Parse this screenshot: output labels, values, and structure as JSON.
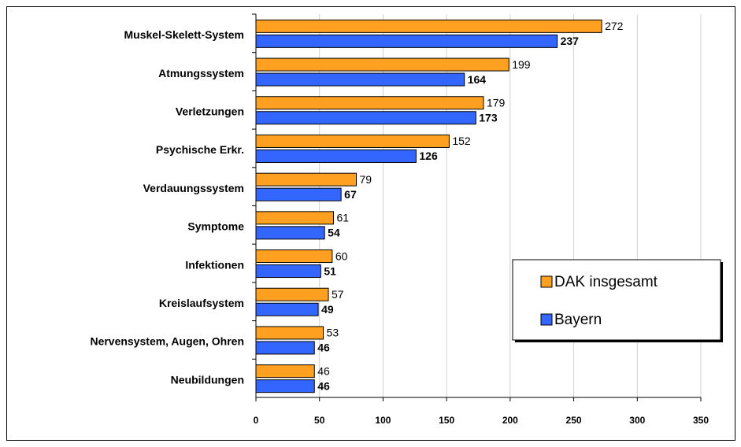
{
  "chart_data": {
    "type": "barh",
    "categories": [
      "Muskel-Skelett-System",
      "Atmungssystem",
      "Verletzungen",
      "Psychische Erkr.",
      "Verdauungssystem",
      "Symptome",
      "Infektionen",
      "Kreislaufsystem",
      "Nervensystem, Augen, Ohren",
      "Neubildungen"
    ],
    "series": [
      {
        "name": "DAK insgesamt",
        "color": "#ffa020",
        "values": [
          272,
          199,
          179,
          152,
          79,
          61,
          60,
          57,
          53,
          46
        ]
      },
      {
        "name": "Bayern",
        "color": "#3366ff",
        "values": [
          237,
          164,
          173,
          126,
          67,
          54,
          51,
          49,
          46,
          46
        ]
      }
    ],
    "xlim": [
      0,
      350
    ],
    "xticks": [
      0,
      50,
      100,
      150,
      200,
      250,
      300,
      350
    ],
    "grid": true,
    "legend": "right"
  }
}
